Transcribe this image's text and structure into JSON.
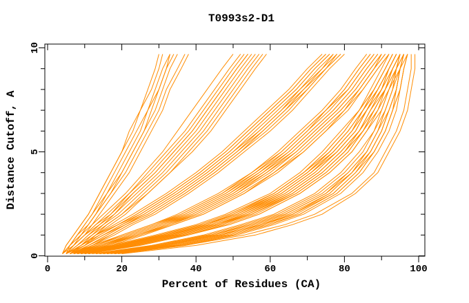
{
  "chart_data": {
    "type": "line",
    "title": "T0993s2-D1",
    "xlabel": "Percent of Residues (CA)",
    "ylabel": "Distance Cutoff, A",
    "xlim": [
      0,
      100
    ],
    "ylim": [
      0,
      10
    ],
    "x_major_ticks": [
      0,
      20,
      40,
      60,
      80,
      100
    ],
    "x_minor_ticks": [
      10,
      30,
      50,
      70,
      90
    ],
    "y_major_ticks": [
      0,
      5,
      10
    ],
    "y_minor_ticks": [
      1,
      2,
      3,
      4,
      6,
      7,
      8,
      9
    ],
    "grid": false,
    "legend": "none",
    "line_color": "#FF8C00",
    "axis_color": "#000000",
    "background_color": "#FFFFFF",
    "cutoffs": [
      0.1,
      0.5,
      1,
      1.5,
      2,
      3,
      4,
      5,
      6,
      7,
      8,
      9,
      9.7
    ],
    "series": [
      [
        16,
        34,
        48,
        58,
        66,
        76,
        82,
        87,
        90,
        92,
        94,
        95,
        96
      ],
      [
        14,
        31,
        45,
        55,
        64,
        75,
        81,
        86,
        89,
        91,
        93,
        94,
        95
      ],
      [
        18,
        36,
        50,
        60,
        68,
        78,
        84,
        88,
        91,
        93,
        95,
        96,
        97
      ],
      [
        15,
        32,
        46,
        56,
        65,
        76,
        82,
        87,
        90,
        92,
        94,
        95,
        96
      ],
      [
        13,
        29,
        43,
        53,
        62,
        73,
        80,
        85,
        88,
        91,
        93,
        94,
        95
      ],
      [
        19,
        37,
        51,
        61,
        69,
        79,
        85,
        89,
        92,
        94,
        95,
        96,
        97
      ],
      [
        14,
        30,
        44,
        54,
        63,
        74,
        81,
        86,
        89,
        92,
        94,
        95,
        96
      ],
      [
        16,
        33,
        47,
        57,
        66,
        77,
        83,
        88,
        91,
        93,
        95,
        96,
        97
      ],
      [
        12,
        28,
        42,
        52,
        61,
        72,
        79,
        84,
        88,
        90,
        92,
        94,
        95
      ],
      [
        15,
        31,
        46,
        58,
        67,
        77,
        83,
        87,
        90,
        92,
        94,
        95,
        96
      ],
      [
        17,
        35,
        49,
        59,
        68,
        78,
        84,
        88,
        91,
        93,
        94,
        95,
        96
      ],
      [
        13,
        30,
        44,
        55,
        64,
        75,
        82,
        86,
        89,
        91,
        93,
        95,
        96
      ],
      [
        20,
        40,
        56,
        66,
        74,
        83,
        89,
        92,
        95,
        97,
        98,
        99,
        99
      ],
      [
        18,
        37,
        53,
        64,
        72,
        82,
        88,
        91,
        94,
        96,
        97,
        98,
        98
      ],
      [
        9,
        20,
        33,
        44,
        52,
        63,
        71,
        77,
        82,
        86,
        89,
        92,
        94
      ],
      [
        8,
        19,
        31,
        42,
        50,
        62,
        70,
        76,
        81,
        85,
        88,
        91,
        93
      ],
      [
        10,
        22,
        35,
        46,
        54,
        65,
        73,
        79,
        84,
        87,
        90,
        93,
        95
      ],
      [
        9,
        21,
        34,
        45,
        53,
        64,
        72,
        78,
        83,
        86,
        89,
        92,
        94
      ],
      [
        7,
        18,
        30,
        41,
        49,
        61,
        69,
        75,
        80,
        84,
        88,
        91,
        93
      ],
      [
        10,
        23,
        36,
        47,
        55,
        66,
        74,
        80,
        85,
        88,
        91,
        93,
        95
      ],
      [
        8,
        20,
        32,
        43,
        51,
        63,
        71,
        77,
        82,
        86,
        89,
        92,
        94
      ],
      [
        9,
        22,
        35,
        46,
        54,
        66,
        74,
        80,
        84,
        88,
        91,
        93,
        95
      ],
      [
        7,
        17,
        29,
        40,
        48,
        60,
        68,
        74,
        79,
        84,
        87,
        90,
        92
      ],
      [
        11,
        24,
        37,
        48,
        56,
        67,
        75,
        81,
        85,
        89,
        91,
        94,
        96
      ],
      [
        8,
        19,
        32,
        43,
        51,
        62,
        70,
        76,
        81,
        85,
        89,
        92,
        94
      ],
      [
        10,
        21,
        34,
        45,
        53,
        65,
        73,
        79,
        84,
        87,
        90,
        93,
        95
      ],
      [
        9,
        20,
        33,
        44,
        52,
        64,
        72,
        78,
        83,
        86,
        90,
        92,
        94
      ],
      [
        7,
        18,
        31,
        42,
        50,
        61,
        69,
        76,
        81,
        85,
        88,
        91,
        93
      ],
      [
        10,
        23,
        36,
        47,
        55,
        67,
        75,
        81,
        85,
        88,
        91,
        94,
        96
      ],
      [
        8,
        19,
        31,
        42,
        51,
        62,
        70,
        77,
        82,
        85,
        89,
        92,
        94
      ],
      [
        11,
        25,
        38,
        49,
        57,
        68,
        76,
        82,
        86,
        89,
        92,
        94,
        96
      ],
      [
        9,
        21,
        34,
        45,
        54,
        65,
        73,
        79,
        84,
        87,
        91,
        93,
        95
      ],
      [
        8,
        18,
        30,
        41,
        49,
        61,
        69,
        75,
        80,
        84,
        88,
        91,
        93
      ],
      [
        10,
        22,
        35,
        46,
        55,
        66,
        74,
        80,
        85,
        88,
        91,
        93,
        95
      ],
      [
        9,
        20,
        32,
        44,
        52,
        63,
        71,
        78,
        83,
        86,
        90,
        92,
        94
      ],
      [
        11,
        24,
        37,
        49,
        57,
        68,
        76,
        82,
        86,
        90,
        92,
        95,
        97
      ],
      [
        7,
        14,
        22,
        30,
        37,
        48,
        57,
        64,
        70,
        76,
        81,
        85,
        88
      ],
      [
        6,
        13,
        21,
        29,
        36,
        47,
        56,
        63,
        69,
        75,
        80,
        84,
        87
      ],
      [
        8,
        15,
        24,
        32,
        39,
        50,
        59,
        66,
        72,
        78,
        83,
        87,
        90
      ],
      [
        7,
        15,
        23,
        31,
        38,
        49,
        58,
        65,
        71,
        77,
        82,
        86,
        89
      ],
      [
        6,
        12,
        20,
        28,
        35,
        46,
        55,
        62,
        68,
        74,
        79,
        83,
        86
      ],
      [
        8,
        16,
        25,
        33,
        40,
        51,
        60,
        67,
        73,
        79,
        84,
        88,
        91
      ],
      [
        7,
        13,
        21,
        29,
        37,
        48,
        56,
        64,
        70,
        75,
        81,
        85,
        88
      ],
      [
        6,
        14,
        22,
        30,
        38,
        49,
        57,
        65,
        71,
        77,
        82,
        86,
        89
      ],
      [
        8,
        16,
        24,
        33,
        41,
        52,
        61,
        68,
        74,
        80,
        84,
        88,
        91
      ],
      [
        7,
        14,
        23,
        31,
        39,
        50,
        58,
        66,
        72,
        78,
        83,
        87,
        90
      ],
      [
        6,
        13,
        20,
        28,
        36,
        47,
        55,
        63,
        69,
        75,
        80,
        84,
        87
      ],
      [
        9,
        17,
        26,
        34,
        42,
        53,
        62,
        69,
        75,
        81,
        85,
        89,
        92
      ],
      [
        7,
        15,
        24,
        32,
        40,
        51,
        59,
        67,
        73,
        79,
        84,
        88,
        90
      ],
      [
        8,
        16,
        25,
        34,
        42,
        53,
        61,
        69,
        75,
        80,
        85,
        89,
        92
      ],
      [
        6,
        10,
        15,
        20,
        25,
        34,
        42,
        49,
        55,
        61,
        67,
        72,
        76
      ],
      [
        5,
        9,
        14,
        19,
        24,
        33,
        41,
        48,
        54,
        60,
        66,
        71,
        75
      ],
      [
        7,
        11,
        16,
        21,
        27,
        36,
        44,
        51,
        57,
        63,
        69,
        74,
        78
      ],
      [
        6,
        10,
        15,
        21,
        26,
        35,
        43,
        50,
        56,
        62,
        68,
        73,
        77
      ],
      [
        5,
        9,
        13,
        18,
        23,
        32,
        40,
        47,
        53,
        59,
        65,
        70,
        74
      ],
      [
        7,
        12,
        17,
        22,
        28,
        37,
        45,
        52,
        58,
        64,
        70,
        75,
        79
      ],
      [
        6,
        11,
        16,
        21,
        27,
        36,
        44,
        51,
        58,
        64,
        69,
        75,
        78
      ],
      [
        5,
        10,
        14,
        19,
        25,
        34,
        42,
        49,
        55,
        61,
        67,
        72,
        76
      ],
      [
        7,
        12,
        18,
        23,
        29,
        38,
        46,
        53,
        60,
        66,
        71,
        76,
        80
      ],
      [
        6,
        10,
        15,
        20,
        26,
        35,
        43,
        50,
        57,
        63,
        68,
        74,
        77
      ],
      [
        5,
        9,
        13,
        19,
        24,
        33,
        41,
        48,
        54,
        60,
        66,
        71,
        75
      ],
      [
        7,
        11,
        17,
        22,
        28,
        37,
        45,
        52,
        59,
        65,
        70,
        75,
        79
      ],
      [
        5,
        8,
        11,
        15,
        18,
        24,
        30,
        35,
        40,
        44,
        48,
        52,
        55
      ],
      [
        4,
        7,
        10,
        13,
        16,
        22,
        27,
        32,
        37,
        41,
        45,
        49,
        52
      ],
      [
        6,
        9,
        12,
        16,
        20,
        26,
        32,
        37,
        42,
        46,
        50,
        54,
        57
      ],
      [
        5,
        8,
        11,
        14,
        18,
        23,
        29,
        34,
        39,
        43,
        47,
        51,
        54
      ],
      [
        4,
        7,
        10,
        13,
        17,
        22,
        28,
        33,
        38,
        42,
        46,
        50,
        53
      ],
      [
        6,
        9,
        13,
        16,
        20,
        27,
        33,
        38,
        43,
        47,
        51,
        55,
        58
      ],
      [
        5,
        8,
        12,
        15,
        19,
        25,
        31,
        36,
        41,
        45,
        49,
        53,
        56
      ],
      [
        4,
        6,
        9,
        12,
        15,
        21,
        26,
        31,
        35,
        39,
        43,
        47,
        50
      ],
      [
        6,
        10,
        13,
        17,
        21,
        27,
        33,
        39,
        44,
        48,
        52,
        56,
        59
      ],
      [
        5,
        7,
        10,
        14,
        17,
        23,
        29,
        34,
        39,
        43,
        47,
        51,
        54
      ],
      [
        4,
        6,
        8,
        10,
        12,
        15,
        18,
        21,
        24,
        27,
        29,
        31,
        33
      ],
      [
        4,
        5,
        7,
        9,
        11,
        14,
        17,
        20,
        22,
        25,
        27,
        29,
        30
      ],
      [
        5,
        7,
        9,
        11,
        13,
        17,
        20,
        23,
        26,
        28,
        30,
        32,
        34
      ],
      [
        4,
        6,
        8,
        10,
        12,
        16,
        19,
        22,
        25,
        27,
        30,
        32,
        33
      ],
      [
        5,
        6,
        8,
        11,
        13,
        16,
        20,
        23,
        26,
        29,
        31,
        33,
        35
      ],
      [
        4,
        5,
        7,
        9,
        11,
        14,
        17,
        20,
        23,
        25,
        28,
        30,
        31
      ],
      [
        5,
        7,
        10,
        12,
        14,
        18,
        22,
        25,
        28,
        31,
        33,
        36,
        38
      ],
      [
        4,
        6,
        9,
        11,
        13,
        17,
        21,
        24,
        27,
        30,
        32,
        35,
        37
      ]
    ]
  }
}
